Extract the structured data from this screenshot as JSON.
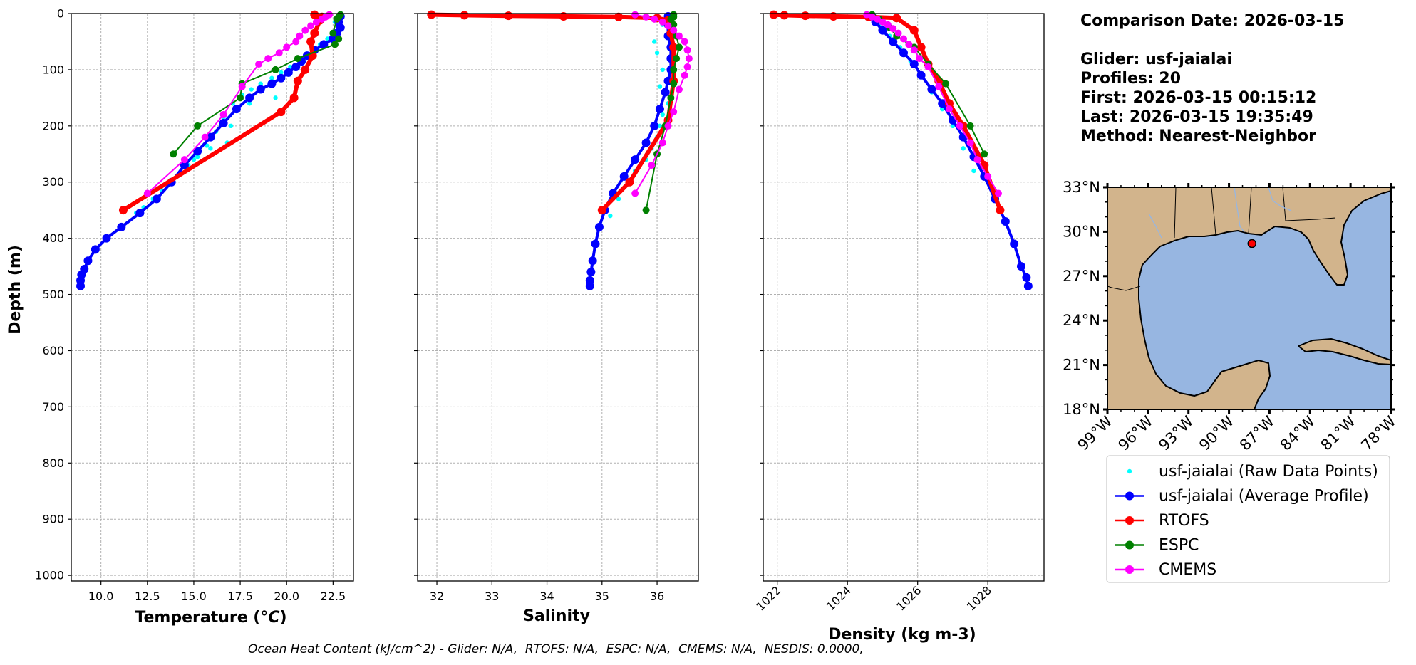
{
  "chart_data": [
    {
      "type": "line",
      "xlabel": "Temperature (°C)",
      "ylabel": "Depth (m)",
      "xlim": [
        8.4,
        23.6
      ],
      "ylim": [
        1010,
        0
      ],
      "y_inverted": true,
      "grid": true,
      "xticks": [
        "10.0",
        "12.5",
        "15.0",
        "17.5",
        "20.0",
        "22.5"
      ],
      "yticks": [
        "0",
        "100",
        "200",
        "300",
        "400",
        "500",
        "600",
        "700",
        "800",
        "900",
        "1000"
      ],
      "series": [
        {
          "name": "usf-jaialai (Raw Data Points)",
          "color": "#00ffff",
          "style": "points",
          "x": [
            22.9,
            22.6,
            23.0,
            22.8,
            22.2,
            21.8,
            21.6,
            21.2,
            20.7,
            20.2,
            19.7,
            19.2,
            18.6,
            18.1,
            17.6,
            17.1,
            16.6,
            16.2,
            15.7,
            15.2,
            14.7,
            14.2,
            13.7,
            13.3,
            12.8,
            12.3,
            11.9,
            19.4,
            18.0,
            17.0,
            16.8,
            15.9,
            15.0
          ],
          "y": [
            5,
            15,
            25,
            35,
            45,
            55,
            65,
            75,
            85,
            95,
            105,
            115,
            125,
            135,
            145,
            160,
            185,
            210,
            235,
            255,
            270,
            285,
            300,
            315,
            330,
            345,
            355,
            150,
            160,
            200,
            230,
            240,
            260
          ]
        },
        {
          "name": "usf-jaialai (Average Profile)",
          "color": "#0000ff",
          "x": [
            22.9,
            22.8,
            22.9,
            22.7,
            22.5,
            22.0,
            21.5,
            21.1,
            20.8,
            20.5,
            20.1,
            19.7,
            19.2,
            18.6,
            18.0,
            17.3,
            16.6,
            15.9,
            15.2,
            14.5,
            13.8,
            13.0,
            12.1,
            11.1,
            10.3,
            9.7,
            9.3,
            9.1,
            8.95,
            8.9,
            8.9
          ],
          "y": [
            5,
            15,
            25,
            35,
            45,
            55,
            65,
            75,
            85,
            95,
            105,
            115,
            125,
            135,
            150,
            170,
            195,
            220,
            245,
            270,
            300,
            330,
            355,
            380,
            400,
            420,
            440,
            455,
            465,
            475,
            485
          ]
        },
        {
          "name": "RTOFS",
          "color": "#ff0000",
          "x": [
            21.5,
            21.9,
            21.8,
            21.5,
            21.3,
            21.4,
            21.0,
            20.6,
            20.4,
            19.7,
            11.2
          ],
          "y": [
            2,
            6,
            12,
            35,
            50,
            75,
            100,
            120,
            150,
            175,
            350
          ]
        },
        {
          "name": "ESPC",
          "color": "#008000",
          "x": [
            22.9,
            22.8,
            22.7,
            22.5,
            22.8,
            22.6,
            20.6,
            19.4,
            17.6,
            17.5,
            15.2,
            13.9
          ],
          "y": [
            2,
            6,
            10,
            35,
            45,
            55,
            80,
            100,
            125,
            150,
            200,
            250
          ]
        },
        {
          "name": "CMEMS",
          "color": "#ff00ff",
          "x": [
            22.3,
            22.1,
            21.9,
            21.6,
            21.3,
            21.0,
            20.7,
            20.5,
            20.0,
            19.6,
            19.0,
            18.5,
            17.6,
            16.6,
            15.6,
            14.5,
            12.5
          ],
          "y": [
            2,
            6,
            10,
            15,
            22,
            30,
            40,
            50,
            60,
            70,
            80,
            90,
            130,
            180,
            220,
            260,
            320
          ]
        }
      ]
    },
    {
      "type": "line",
      "xlabel": "Salinity",
      "xlim": [
        31.65,
        36.75
      ],
      "ylim": [
        1010,
        0
      ],
      "y_inverted": true,
      "grid": true,
      "xticks": [
        "32",
        "33",
        "34",
        "35",
        "36"
      ],
      "series": [
        {
          "name": "usf-jaialai (Raw Data Points)",
          "color": "#00ffff",
          "style": "points",
          "x": [
            36.2,
            36.1,
            35.95,
            36.0,
            36.1,
            36.05,
            36.2,
            36.1,
            36.05,
            36.0,
            35.9,
            35.8,
            35.6,
            35.5,
            35.3,
            35.15
          ],
          "y": [
            5,
            20,
            50,
            70,
            100,
            130,
            160,
            180,
            200,
            220,
            240,
            260,
            280,
            300,
            330,
            360
          ]
        },
        {
          "name": "usf-jaialai (Average Profile)",
          "color": "#0000ff",
          "x": [
            36.2,
            36.2,
            36.2,
            36.25,
            36.25,
            36.25,
            36.2,
            36.15,
            36.05,
            35.95,
            35.8,
            35.6,
            35.4,
            35.2,
            35.05,
            34.95,
            34.88,
            34.83,
            34.8,
            34.78,
            34.78
          ],
          "y": [
            5,
            20,
            40,
            60,
            80,
            100,
            120,
            140,
            170,
            200,
            230,
            260,
            290,
            320,
            350,
            380,
            410,
            440,
            460,
            475,
            485
          ]
        },
        {
          "name": "RTOFS",
          "color": "#ff0000",
          "x": [
            31.9,
            32.5,
            33.3,
            34.3,
            35.3,
            36.0,
            36.2,
            36.25,
            36.3,
            36.3,
            36.2,
            35.5,
            35.0
          ],
          "y": [
            2,
            3,
            4,
            5,
            6,
            8,
            12,
            35,
            60,
            120,
            190,
            300,
            350
          ]
        },
        {
          "name": "ESPC",
          "color": "#008000",
          "x": [
            36.3,
            36.3,
            36.25,
            36.3,
            36.35,
            36.4,
            36.35,
            36.3,
            36.3,
            36.25,
            36.15,
            36.0,
            35.8
          ],
          "y": [
            2,
            6,
            10,
            20,
            40,
            60,
            80,
            100,
            125,
            150,
            200,
            250,
            350
          ]
        },
        {
          "name": "CMEMS",
          "color": "#ff00ff",
          "x": [
            35.6,
            35.8,
            35.95,
            36.1,
            36.2,
            36.3,
            36.4,
            36.5,
            36.55,
            36.58,
            36.55,
            36.5,
            36.4,
            36.3,
            36.2,
            36.1,
            35.9,
            35.6
          ],
          "y": [
            2,
            6,
            10,
            15,
            22,
            30,
            40,
            50,
            65,
            80,
            95,
            110,
            135,
            175,
            200,
            230,
            270,
            320
          ]
        }
      ]
    },
    {
      "type": "line",
      "xlabel": "Density (kg m-3)",
      "xlim": [
        1021.6,
        1029.6
      ],
      "ylim": [
        1010,
        0
      ],
      "y_inverted": true,
      "grid": true,
      "xticks": [
        "1022",
        "1024",
        "1026",
        "1028"
      ],
      "series": [
        {
          "name": "usf-jaialai (Raw Data Points)",
          "color": "#00ffff",
          "style": "points",
          "x": [
            1024.7,
            1024.9,
            1025.2,
            1025.5,
            1025.8,
            1026.1,
            1026.4,
            1026.7,
            1027.0,
            1027.3,
            1027.6
          ],
          "y": [
            5,
            20,
            40,
            60,
            85,
            110,
            140,
            170,
            200,
            240,
            280
          ]
        },
        {
          "name": "usf-jaialai (Average Profile)",
          "color": "#0000ff",
          "x": [
            1024.7,
            1024.8,
            1025.0,
            1025.3,
            1025.6,
            1025.9,
            1026.1,
            1026.4,
            1026.7,
            1027.0,
            1027.3,
            1027.6,
            1027.9,
            1028.2,
            1028.5,
            1028.75,
            1028.95,
            1029.1,
            1029.15
          ],
          "y": [
            5,
            15,
            30,
            50,
            70,
            90,
            110,
            135,
            160,
            190,
            220,
            255,
            290,
            330,
            370,
            410,
            450,
            470,
            485
          ]
        },
        {
          "name": "RTOFS",
          "color": "#ff0000",
          "x": [
            1021.9,
            1022.2,
            1022.8,
            1023.6,
            1024.6,
            1025.4,
            1025.9,
            1026.1,
            1026.3,
            1026.6,
            1026.9,
            1027.3,
            1027.9,
            1028.35
          ],
          "y": [
            2,
            3,
            4,
            5,
            6,
            8,
            30,
            60,
            90,
            120,
            160,
            200,
            270,
            350
          ]
        },
        {
          "name": "ESPC",
          "color": "#008000",
          "x": [
            1024.7,
            1024.9,
            1025.2,
            1025.4,
            1025.9,
            1026.3,
            1026.8,
            1027.5,
            1027.9
          ],
          "y": [
            2,
            10,
            25,
            40,
            60,
            90,
            125,
            200,
            250
          ]
        },
        {
          "name": "CMEMS",
          "color": "#ff00ff",
          "x": [
            1024.55,
            1024.7,
            1024.85,
            1025.0,
            1025.15,
            1025.3,
            1025.45,
            1025.6,
            1025.75,
            1025.9,
            1026.05,
            1026.3,
            1026.6,
            1026.9,
            1027.2,
            1027.5,
            1027.7,
            1028.0,
            1028.3
          ],
          "y": [
            2,
            6,
            10,
            15,
            20,
            27,
            35,
            45,
            55,
            65,
            80,
            95,
            130,
            170,
            200,
            230,
            260,
            290,
            320
          ]
        }
      ]
    }
  ],
  "ocean_heat_content": "Ocean Heat Content (kJ/cm^2) - Glider: N/A,  RTOFS: N/A,  ESPC: N/A,  CMEMS: N/A,  NESDIS: 0.0000,",
  "info": {
    "comparison_date": "Comparison Date: 2026-03-15",
    "glider": "Glider: usf-jaialai",
    "profiles": "Profiles: 20",
    "first": "First: 2026-03-15 00:15:12",
    "last": "Last: 2026-03-15 19:35:49",
    "method": "Method: Nearest-Neighbor"
  },
  "map": {
    "lat_ticks": [
      "33°N",
      "30°N",
      "27°N",
      "24°N",
      "21°N",
      "18°N"
    ],
    "lon_ticks": [
      "99°W",
      "96°W",
      "93°W",
      "90°W",
      "87°W",
      "84°W",
      "81°W",
      "78°W"
    ],
    "lon_range": [
      -99,
      -78
    ],
    "lat_range": [
      18,
      33
    ],
    "land_color": "#d2b48c",
    "ocean_color": "#97b6e1",
    "glider_position": {
      "lon": -88.3,
      "lat": 29.2
    }
  },
  "legend": [
    {
      "label": "usf-jaialai (Raw Data Points)",
      "color": "#00ffff",
      "marker": "point"
    },
    {
      "label": "usf-jaialai (Average Profile)",
      "color": "#0000ff",
      "marker": "line"
    },
    {
      "label": "RTOFS",
      "color": "#ff0000",
      "marker": "line"
    },
    {
      "label": "ESPC",
      "color": "#008000",
      "marker": "line"
    },
    {
      "label": "CMEMS",
      "color": "#ff00ff",
      "marker": "line"
    }
  ]
}
